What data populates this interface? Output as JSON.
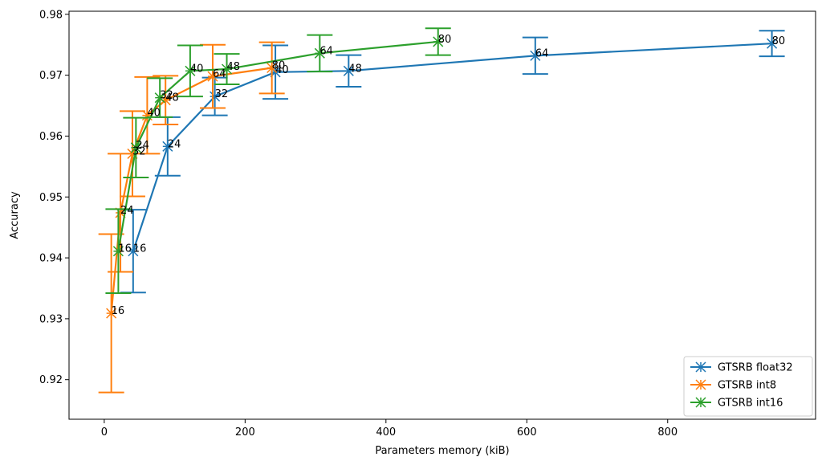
{
  "chart_data": {
    "type": "line",
    "title": "",
    "xlabel": "Parameters memory (kiB)",
    "ylabel": "Accuracy",
    "xlim": [
      -50,
      1010
    ],
    "ylim": [
      0.9135,
      0.9805
    ],
    "xticks": [
      0,
      200,
      400,
      600,
      800
    ],
    "yticks": [
      0.92,
      0.93,
      0.94,
      0.95,
      0.96,
      0.97,
      0.98
    ],
    "ytick_labels": [
      "0.92",
      "0.93",
      "0.94",
      "0.95",
      "0.96",
      "0.97",
      "0.98"
    ],
    "grid": false,
    "legend_position": "lower-right",
    "series": [
      {
        "name": "GTSRB float32",
        "color": "#1f77b4",
        "points": [
          {
            "x": 41,
            "y": 0.9411,
            "err": 0.0068,
            "label": "16"
          },
          {
            "x": 90,
            "y": 0.9583,
            "err": 0.0048,
            "label": "24"
          },
          {
            "x": 157,
            "y": 0.9665,
            "err": 0.0031,
            "label": "32"
          },
          {
            "x": 243,
            "y": 0.9705,
            "err": 0.0044,
            "label": "40"
          },
          {
            "x": 347,
            "y": 0.9707,
            "err": 0.0026,
            "label": "48"
          },
          {
            "x": 612,
            "y": 0.9732,
            "err": 0.003,
            "label": "64"
          },
          {
            "x": 948,
            "y": 0.9752,
            "err": 0.0021,
            "label": "80"
          }
        ]
      },
      {
        "name": "GTSRB int8",
        "color": "#ff7f0e",
        "points": [
          {
            "x": 10,
            "y": 0.9309,
            "err": 0.013,
            "label": "16"
          },
          {
            "x": 23,
            "y": 0.9474,
            "err": 0.0097,
            "label": "24"
          },
          {
            "x": 40,
            "y": 0.9571,
            "err": 0.007,
            "label": "32"
          },
          {
            "x": 61,
            "y": 0.9634,
            "err": 0.0063,
            "label": "40"
          },
          {
            "x": 87,
            "y": 0.9659,
            "err": 0.004,
            "label": "48"
          },
          {
            "x": 154,
            "y": 0.9698,
            "err": 0.0052,
            "label": "64"
          },
          {
            "x": 238,
            "y": 0.9712,
            "err": 0.0042,
            "label": "80"
          }
        ]
      },
      {
        "name": "GTSRB int16",
        "color": "#2ca02c",
        "points": [
          {
            "x": 20,
            "y": 0.9411,
            "err": 0.0069,
            "label": "16"
          },
          {
            "x": 45,
            "y": 0.9581,
            "err": 0.0049,
            "label": "24"
          },
          {
            "x": 79,
            "y": 0.9663,
            "err": 0.0032,
            "label": "32"
          },
          {
            "x": 122,
            "y": 0.9707,
            "err": 0.0042,
            "label": "40"
          },
          {
            "x": 174,
            "y": 0.971,
            "err": 0.0025,
            "label": "48"
          },
          {
            "x": 306,
            "y": 0.9736,
            "err": 0.003,
            "label": "64"
          },
          {
            "x": 474,
            "y": 0.9755,
            "err": 0.0022,
            "label": "80"
          }
        ]
      }
    ]
  }
}
